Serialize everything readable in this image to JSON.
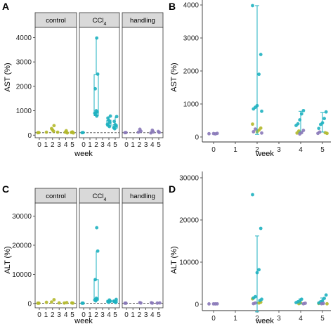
{
  "colors": {
    "control": "#b3b82a",
    "ccl4": "#1eb1c0",
    "handling": "#8878b8",
    "strip_bg": "#d9d9d9",
    "dashed_line": "#444444"
  },
  "chart_data": [
    {
      "panel": "A",
      "type": "scatter",
      "variant": "faceted-box",
      "ylabel": "AST (%)",
      "xlabel": "week",
      "y_ticks": [
        0,
        1000,
        2000,
        3000,
        4000
      ],
      "ylim": [
        -50,
        4300
      ],
      "x_ticks": [
        0,
        1,
        2,
        3,
        4,
        5
      ],
      "dashed_reference": 100,
      "facets": [
        {
          "label": "control",
          "sub": "",
          "color_key": "control",
          "points": [
            [
              0,
              100
            ],
            [
              0,
              105
            ],
            [
              1,
              120
            ],
            [
              2,
              390
            ],
            [
              2,
              270
            ],
            [
              2,
              210
            ],
            [
              2,
              160
            ],
            [
              3,
              120
            ],
            [
              4,
              120
            ],
            [
              4,
              180
            ],
            [
              4,
              90
            ],
            [
              5,
              110
            ],
            [
              5,
              130
            ],
            [
              5,
              90
            ]
          ],
          "boxes": []
        },
        {
          "label": "CCl",
          "sub": "4",
          "color_key": "ccl4",
          "points": [
            [
              0,
              100
            ],
            [
              0,
              105
            ],
            [
              2,
              3980
            ],
            [
              2,
              2500
            ],
            [
              2,
              1900
            ],
            [
              2,
              1000
            ],
            [
              2,
              950
            ],
            [
              2,
              900
            ],
            [
              2,
              850
            ],
            [
              2,
              780
            ],
            [
              4,
              780
            ],
            [
              4,
              700
            ],
            [
              4,
              600
            ],
            [
              4,
              520
            ],
            [
              4,
              440
            ],
            [
              4,
              400
            ],
            [
              4,
              350
            ],
            [
              5,
              760
            ],
            [
              5,
              560
            ],
            [
              5,
              430
            ],
            [
              5,
              380
            ],
            [
              5,
              300
            ],
            [
              5,
              260
            ]
          ],
          "boxes": [
            {
              "x": 2,
              "q1": 800,
              "median": 920,
              "q3": 2480,
              "min": 780,
              "max": 3980
            },
            {
              "x": 4,
              "q1": 370,
              "median": 500,
              "q3": 610,
              "min": 350,
              "max": 780
            },
            {
              "x": 5,
              "q1": 290,
              "median": 360,
              "q3": 430,
              "min": 260,
              "max": 760
            }
          ]
        },
        {
          "label": "handling",
          "sub": "",
          "color_key": "handling",
          "points": [
            [
              0,
              100
            ],
            [
              0,
              105
            ],
            [
              2,
              240
            ],
            [
              2,
              160
            ],
            [
              2,
              120
            ],
            [
              4,
              200
            ],
            [
              4,
              130
            ],
            [
              4,
              90
            ],
            [
              5,
              150
            ],
            [
              5,
              110
            ]
          ],
          "boxes": []
        }
      ]
    },
    {
      "panel": "B",
      "type": "scatter",
      "variant": "combined",
      "ylabel": "AST (%)",
      "xlabel": "week",
      "y_ticks": [
        0,
        1000,
        2000,
        3000,
        4000
      ],
      "ylim": [
        -150,
        4150
      ],
      "x_ticks": [
        0,
        1,
        2,
        3,
        4,
        5
      ],
      "series": [
        {
          "color_key": "control",
          "points": [
            [
              2,
              390
            ],
            [
              2,
              270
            ],
            [
              2,
              210
            ],
            [
              2,
              160
            ],
            [
              4,
              180
            ],
            [
              4,
              120
            ],
            [
              5,
              110
            ],
            [
              5,
              130
            ]
          ]
        },
        {
          "color_key": "ccl4",
          "points": [
            [
              2,
              3980
            ],
            [
              2,
              2500
            ],
            [
              2,
              1900
            ],
            [
              2,
              950
            ],
            [
              2,
              900
            ],
            [
              2,
              850
            ],
            [
              2,
              780
            ],
            [
              4,
              800
            ],
            [
              4,
              700
            ],
            [
              4,
              520
            ],
            [
              4,
              400
            ],
            [
              4,
              350
            ],
            [
              5,
              760
            ],
            [
              5,
              560
            ],
            [
              5,
              430
            ],
            [
              5,
              380
            ],
            [
              5,
              260
            ]
          ],
          "errorbars": [
            {
              "x": 2,
              "low": 80,
              "high": 3980
            },
            {
              "x": 4,
              "low": 150,
              "high": 780
            },
            {
              "x": 5,
              "low": 150,
              "high": 740
            }
          ]
        },
        {
          "color_key": "handling",
          "points": [
            [
              0,
              100
            ],
            [
              0,
              110
            ],
            [
              0,
              95
            ],
            [
              0,
              105
            ],
            [
              2,
              240
            ],
            [
              2,
              160
            ],
            [
              2,
              120
            ],
            [
              4,
              200
            ],
            [
              4,
              130
            ],
            [
              4,
              90
            ],
            [
              5,
              150
            ],
            [
              5,
              110
            ]
          ]
        }
      ]
    },
    {
      "panel": "C",
      "type": "scatter",
      "variant": "faceted-box",
      "ylabel": "ALT (%)",
      "xlabel": "week",
      "y_ticks": [
        0,
        10000,
        20000,
        30000
      ],
      "ylim": [
        -1000,
        33500
      ],
      "x_ticks": [
        0,
        1,
        2,
        3,
        4,
        5
      ],
      "dashed_reference": 100,
      "facets": [
        {
          "label": "control",
          "sub": "",
          "color_key": "control",
          "points": [
            [
              0,
              100
            ],
            [
              0,
              110
            ],
            [
              1,
              400
            ],
            [
              2,
              1300
            ],
            [
              2,
              500
            ],
            [
              3,
              200
            ],
            [
              4,
              300
            ],
            [
              4,
              150
            ],
            [
              5,
              200
            ],
            [
              5,
              120
            ]
          ],
          "boxes": []
        },
        {
          "label": "CCl",
          "sub": "4",
          "color_key": "ccl4",
          "points": [
            [
              0,
              100
            ],
            [
              0,
              110
            ],
            [
              2,
              26000
            ],
            [
              2,
              18000
            ],
            [
              2,
              8200
            ],
            [
              2,
              1800
            ],
            [
              2,
              1500
            ],
            [
              2,
              1200
            ],
            [
              2,
              900
            ],
            [
              4,
              1200
            ],
            [
              4,
              800
            ],
            [
              4,
              600
            ],
            [
              4,
              400
            ],
            [
              5,
              1400
            ],
            [
              5,
              800
            ],
            [
              5,
              600
            ],
            [
              5,
              300
            ]
          ],
          "boxes": [
            {
              "x": 2,
              "q1": 1100,
              "median": 1700,
              "q3": 8200,
              "min": 900,
              "max": 18000
            },
            {
              "x": 4,
              "q1": 450,
              "median": 650,
              "q3": 1100,
              "min": 400,
              "max": 1200
            },
            {
              "x": 5,
              "q1": 350,
              "median": 650,
              "q3": 1100,
              "min": 300,
              "max": 1400
            }
          ]
        },
        {
          "label": "handling",
          "sub": "",
          "color_key": "handling",
          "points": [
            [
              0,
              100
            ],
            [
              0,
              110
            ],
            [
              2,
              300
            ],
            [
              2,
              150
            ],
            [
              4,
              250
            ],
            [
              4,
              120
            ],
            [
              5,
              200
            ],
            [
              5,
              130
            ]
          ],
          "boxes": []
        }
      ]
    },
    {
      "panel": "D",
      "type": "scatter",
      "variant": "combined",
      "ylabel": "ALT (%)",
      "xlabel": "week",
      "y_ticks": [
        0,
        10000,
        20000,
        30000
      ],
      "ylim": [
        -1500,
        31500
      ],
      "x_ticks": [
        0,
        1,
        2,
        3,
        4,
        5
      ],
      "series": [
        {
          "color_key": "control",
          "points": [
            [
              2,
              1300
            ],
            [
              2,
              500
            ],
            [
              2,
              300
            ],
            [
              4,
              300
            ],
            [
              4,
              150
            ],
            [
              5,
              200
            ],
            [
              5,
              120
            ]
          ]
        },
        {
          "color_key": "ccl4",
          "points": [
            [
              2,
              26000
            ],
            [
              2,
              18000
            ],
            [
              2,
              8200
            ],
            [
              2,
              7500
            ],
            [
              2,
              1800
            ],
            [
              2,
              1500
            ],
            [
              2,
              1200
            ],
            [
              2,
              900
            ],
            [
              4,
              1200
            ],
            [
              4,
              800
            ],
            [
              4,
              600
            ],
            [
              4,
              400
            ],
            [
              5,
              2200
            ],
            [
              5,
              1400
            ],
            [
              5,
              800
            ],
            [
              5,
              600
            ],
            [
              5,
              300
            ]
          ],
          "errorbars": [
            {
              "x": 2,
              "low": -1800,
              "high": 16200
            },
            {
              "x": 4,
              "low": 100,
              "high": 1300
            },
            {
              "x": 5,
              "low": 100,
              "high": 1500
            }
          ]
        },
        {
          "color_key": "handling",
          "points": [
            [
              0,
              100
            ],
            [
              0,
              110
            ],
            [
              0,
              95
            ],
            [
              0,
              105
            ],
            [
              2,
              300
            ],
            [
              2,
              150
            ],
            [
              4,
              250
            ],
            [
              4,
              120
            ],
            [
              5,
              200
            ],
            [
              5,
              130
            ]
          ]
        }
      ]
    }
  ]
}
